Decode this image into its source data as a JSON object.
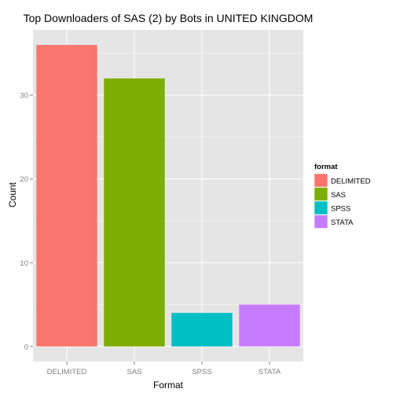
{
  "chart_data": {
    "type": "bar",
    "title": "Top Downloaders of SAS (2) by Bots in UNITED KINGDOM",
    "xlabel": "Format",
    "ylabel": "Count",
    "categories": [
      "DELIMITED",
      "SAS",
      "SPSS",
      "STATA"
    ],
    "values": [
      36,
      32,
      4,
      5
    ],
    "ylim": [
      -1.8,
      37.8
    ],
    "yticks": [
      0,
      10,
      20,
      30
    ],
    "grid": true,
    "legend": {
      "title": "format",
      "placement": "right",
      "entries": [
        "DELIMITED",
        "SAS",
        "SPSS",
        "STATA"
      ]
    },
    "colors": [
      "#F8766D",
      "#7CAE00",
      "#00BFC4",
      "#C77CFF"
    ],
    "panel_background": "#E5E5E5",
    "grid_color": "#FFFFFF"
  }
}
